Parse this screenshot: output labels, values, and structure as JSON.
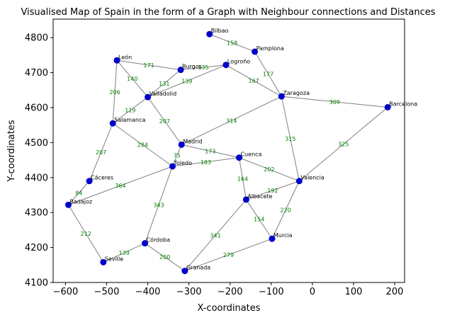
{
  "chart_data": {
    "type": "scatter",
    "title": "Visualised Map of Spain in the form of a Graph with Neighbour connections and Distances",
    "xlabel": "X-coordinates",
    "ylabel": "Y-coordinates",
    "xlim": [
      -630,
      224
    ],
    "ylim": [
      4100,
      4853
    ],
    "xticks": [
      -600,
      -500,
      -400,
      -300,
      -200,
      -100,
      0,
      100,
      200
    ],
    "yticks": [
      4100,
      4200,
      4300,
      4400,
      4500,
      4600,
      4700,
      4800
    ],
    "grid": false,
    "node_color": "#0000cc",
    "edge_color": "#808080",
    "edge_label_color": "#008000",
    "nodes": [
      {
        "name": "Bilbao",
        "x": -250,
        "y": 4810
      },
      {
        "name": "Pamplona",
        "x": -140,
        "y": 4760
      },
      {
        "name": "León",
        "x": -475,
        "y": 4735
      },
      {
        "name": "Logroño",
        "x": -210,
        "y": 4722
      },
      {
        "name": "Burgos",
        "x": -320,
        "y": 4708
      },
      {
        "name": "Zaragoza",
        "x": -75,
        "y": 4632
      },
      {
        "name": "Valladolid",
        "x": -400,
        "y": 4630
      },
      {
        "name": "Barcelona",
        "x": 183,
        "y": 4601
      },
      {
        "name": "Salamanca",
        "x": -485,
        "y": 4555
      },
      {
        "name": "Madrid",
        "x": -318,
        "y": 4494
      },
      {
        "name": "Cuenca",
        "x": -178,
        "y": 4457
      },
      {
        "name": "Toledo",
        "x": -340,
        "y": 4432
      },
      {
        "name": "Cáceres",
        "x": -542,
        "y": 4390
      },
      {
        "name": "Valencia",
        "x": -32,
        "y": 4390
      },
      {
        "name": "Albacete",
        "x": -161,
        "y": 4337
      },
      {
        "name": "Badajoz",
        "x": -593,
        "y": 4322
      },
      {
        "name": "Murcia",
        "x": -98,
        "y": 4225
      },
      {
        "name": "Córdoba",
        "x": -407,
        "y": 4212
      },
      {
        "name": "Seville",
        "x": -508,
        "y": 4158
      },
      {
        "name": "Granada",
        "x": -310,
        "y": 4133
      }
    ],
    "edges": [
      {
        "from": "Bilbao",
        "to": "Pamplona",
        "distance": "158"
      },
      {
        "from": "León",
        "to": "Burgos",
        "distance": "171"
      },
      {
        "from": "León",
        "to": "Valladolid",
        "distance": "140"
      },
      {
        "from": "León",
        "to": "Salamanca",
        "distance": "206"
      },
      {
        "from": "Burgos",
        "to": "Logroño",
        "distance": "135"
      },
      {
        "from": "Burgos",
        "to": "Valladolid",
        "distance": "131"
      },
      {
        "from": "Logroño",
        "to": "Valladolid",
        "distance": "139"
      },
      {
        "from": "Logroño",
        "to": "Zaragoza",
        "distance": "167"
      },
      {
        "from": "Pamplona",
        "to": "Zaragoza",
        "distance": "177"
      },
      {
        "from": "Zaragoza",
        "to": "Barcelona",
        "distance": "309"
      },
      {
        "from": "Zaragoza",
        "to": "Madrid",
        "distance": "314"
      },
      {
        "from": "Zaragoza",
        "to": "Valencia",
        "distance": "315"
      },
      {
        "from": "Barcelona",
        "to": "Valencia",
        "distance": "325"
      },
      {
        "from": "Valladolid",
        "to": "Salamanca",
        "distance": "119"
      },
      {
        "from": "Valladolid",
        "to": "Madrid",
        "distance": "207"
      },
      {
        "from": "Salamanca",
        "to": "Toledo",
        "distance": "284"
      },
      {
        "from": "Salamanca",
        "to": "Cáceres",
        "distance": "207"
      },
      {
        "from": "Madrid",
        "to": "Cuenca",
        "distance": "173"
      },
      {
        "from": "Madrid",
        "to": "Toledo",
        "distance": "75"
      },
      {
        "from": "Toledo",
        "to": "Cuenca",
        "distance": "183"
      },
      {
        "from": "Toledo",
        "to": "Badajoz",
        "distance": "364"
      },
      {
        "from": "Toledo",
        "to": "Córdoba",
        "distance": "343"
      },
      {
        "from": "Cuenca",
        "to": "Valencia",
        "distance": "202"
      },
      {
        "from": "Cuenca",
        "to": "Albacete",
        "distance": "164"
      },
      {
        "from": "Cáceres",
        "to": "Badajoz",
        "distance": "84"
      },
      {
        "from": "Valencia",
        "to": "Albacete",
        "distance": "192"
      },
      {
        "from": "Valencia",
        "to": "Murcia",
        "distance": "220"
      },
      {
        "from": "Albacete",
        "to": "Murcia",
        "distance": "154"
      },
      {
        "from": "Albacete",
        "to": "Granada",
        "distance": "341"
      },
      {
        "from": "Badajoz",
        "to": "Seville",
        "distance": "212"
      },
      {
        "from": "Murcia",
        "to": "Granada",
        "distance": "279"
      },
      {
        "from": "Córdoba",
        "to": "Seville",
        "distance": "139"
      },
      {
        "from": "Córdoba",
        "to": "Granada",
        "distance": "200"
      }
    ]
  }
}
